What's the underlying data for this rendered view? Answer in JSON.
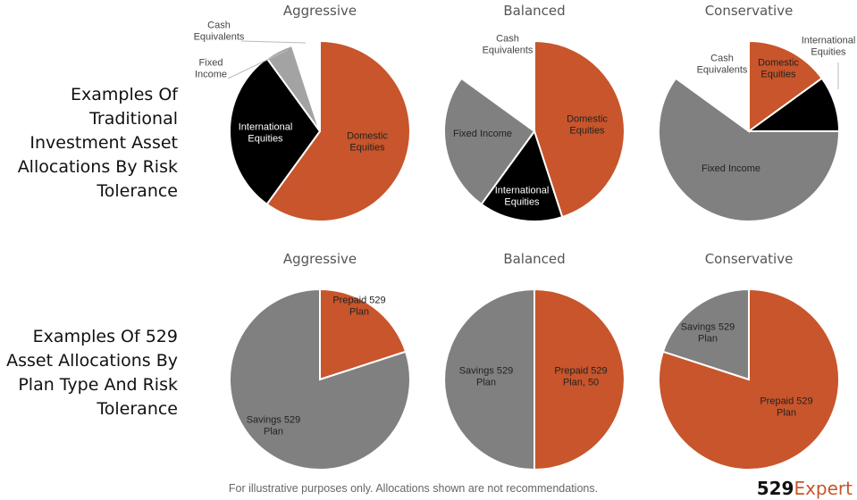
{
  "headings": {
    "traditional": "Examples Of Traditional Investment Asset Allocations By Risk Tolerance",
    "plan_type": "Examples Of 529 Asset Allocations By Plan Type And Risk Tolerance"
  },
  "footer": "For illustrative purposes only. Allocations shown are not recommendations.",
  "logo": {
    "number": "529",
    "word": "Expert"
  },
  "colors": {
    "orange": "#c8552b",
    "gray": "#808080",
    "light_gray": "#a3a3a3",
    "black": "#000000",
    "white": "#ffffff"
  },
  "chart_data": [
    {
      "type": "pie",
      "title": "Aggressive",
      "slices": [
        {
          "label": "Domestic Equities",
          "value": 60,
          "color": "#c8552b"
        },
        {
          "label": "International Equities",
          "value": 30,
          "color": "#000000"
        },
        {
          "label": "Fixed Income",
          "value": 5,
          "color": "#a3a3a3"
        },
        {
          "label": "Cash Equivalents",
          "value": 5,
          "color": "#ffffff"
        }
      ]
    },
    {
      "type": "pie",
      "title": "Balanced",
      "slices": [
        {
          "label": "Domestic Equities",
          "value": 45,
          "color": "#c8552b"
        },
        {
          "label": "International Equities",
          "value": 15,
          "color": "#000000"
        },
        {
          "label": "Fixed Income",
          "value": 25,
          "color": "#808080"
        },
        {
          "label": "Cash Equivalents",
          "value": 15,
          "color": "#ffffff"
        }
      ]
    },
    {
      "type": "pie",
      "title": "Conservative",
      "slices": [
        {
          "label": "Domestic Equities",
          "value": 15,
          "color": "#c8552b"
        },
        {
          "label": "International Equities",
          "value": 10,
          "color": "#000000"
        },
        {
          "label": "Fixed Income",
          "value": 60,
          "color": "#808080"
        },
        {
          "label": "Cash Equivalents",
          "value": 15,
          "color": "#ffffff"
        }
      ]
    },
    {
      "type": "pie",
      "title": "Aggressive",
      "slices": [
        {
          "label": "Prepaid 529 Plan",
          "value": 20,
          "color": "#c8552b"
        },
        {
          "label": "Savings 529 Plan",
          "value": 80,
          "color": "#808080"
        }
      ]
    },
    {
      "type": "pie",
      "title": "Balanced",
      "slices": [
        {
          "label": "Prepaid 529 Plan, 50",
          "value": 50,
          "color": "#c8552b"
        },
        {
          "label": "Savings 529 Plan",
          "value": 50,
          "color": "#808080"
        }
      ]
    },
    {
      "type": "pie",
      "title": "Conservative",
      "slices": [
        {
          "label": "Prepaid 529 Plan",
          "value": 80,
          "color": "#c8552b"
        },
        {
          "label": "Savings 529 Plan",
          "value": 20,
          "color": "#808080"
        }
      ]
    }
  ]
}
